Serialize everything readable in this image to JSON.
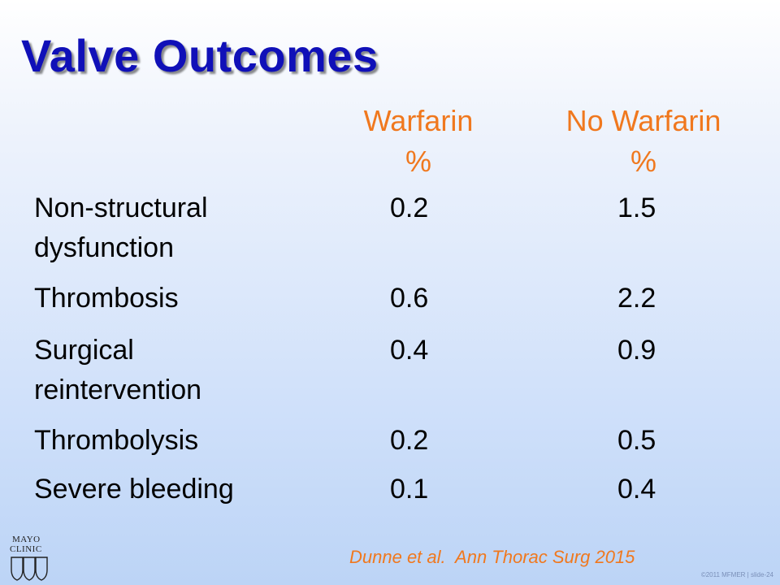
{
  "slide": {
    "title": "Valve Outcomes",
    "columns": [
      {
        "line1": "Warfarin",
        "line2": "%"
      },
      {
        "line1": "No Warfarin",
        "line2": "%"
      }
    ],
    "rows": [
      {
        "label_line1": "Non-structural",
        "label_line2": "dysfunction",
        "warfarin": "0.2",
        "no_warfarin": "1.5"
      },
      {
        "label_line1": "Thrombosis",
        "label_line2": "",
        "warfarin": "0.6",
        "no_warfarin": "2.2"
      },
      {
        "label_line1": "Surgical",
        "label_line2": "reintervention",
        "warfarin": "0.4",
        "no_warfarin": "0.9"
      },
      {
        "label_line1": "Thrombolysis",
        "label_line2": "",
        "warfarin": "0.2",
        "no_warfarin": "0.5"
      },
      {
        "label_line1": "Severe bleeding",
        "label_line2": "",
        "warfarin": "0.1",
        "no_warfarin": "0.4"
      }
    ],
    "citation": "Dunne et al.  Ann Thorac Surg 2015",
    "logo": {
      "line1": "MAYO",
      "line2": "CLINIC",
      "icon": "mayo-shields-icon"
    },
    "copyright": "©2011 MFMER  |  slide-24"
  },
  "colors": {
    "title": "#1010b8",
    "accent": "#f0781e"
  }
}
